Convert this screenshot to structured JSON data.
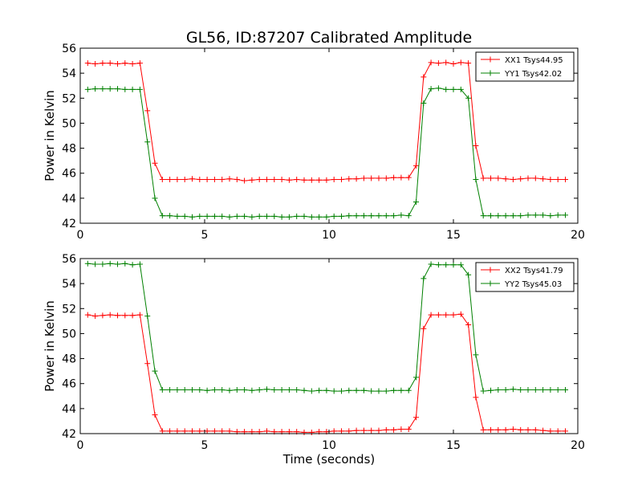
{
  "figure_title": "GL56, ID:87207 Calibrated Amplitude",
  "chart_data": [
    {
      "type": "line",
      "title": "GL56, ID:87207 Calibrated Amplitude",
      "xlabel": "",
      "ylabel": "Power in Kelvin",
      "xlim": [
        0,
        20
      ],
      "ylim": [
        42,
        56
      ],
      "xticks": [
        0,
        5,
        10,
        15,
        20
      ],
      "yticks": [
        42,
        44,
        46,
        48,
        50,
        52,
        54,
        56
      ],
      "grid": false,
      "legend_position": "top-right",
      "x": [
        0.3,
        0.6,
        0.9,
        1.2,
        1.5,
        1.8,
        2.1,
        2.4,
        2.7,
        3.0,
        3.3,
        3.6,
        3.9,
        4.2,
        4.5,
        4.8,
        5.1,
        5.4,
        5.7,
        6.0,
        6.3,
        6.6,
        6.9,
        7.2,
        7.5,
        7.8,
        8.1,
        8.4,
        8.7,
        9.0,
        9.3,
        9.6,
        9.9,
        10.2,
        10.5,
        10.8,
        11.1,
        11.4,
        11.7,
        12.0,
        12.3,
        12.6,
        12.9,
        13.2,
        13.5,
        13.8,
        14.1,
        14.4,
        14.7,
        15.0,
        15.3,
        15.6,
        15.9,
        16.2,
        16.5,
        16.8,
        17.1,
        17.4,
        17.7,
        18.0,
        18.3,
        18.6,
        18.9,
        19.2,
        19.5
      ],
      "series": [
        {
          "name": "XX1 Tsys44.95",
          "color": "#ff0000",
          "values": [
            54.8,
            54.75,
            54.8,
            54.8,
            54.75,
            54.8,
            54.75,
            54.8,
            51.0,
            46.8,
            45.5,
            45.5,
            45.5,
            45.5,
            45.55,
            45.5,
            45.5,
            45.5,
            45.5,
            45.55,
            45.5,
            45.4,
            45.45,
            45.5,
            45.5,
            45.5,
            45.5,
            45.45,
            45.5,
            45.45,
            45.45,
            45.45,
            45.45,
            45.5,
            45.5,
            45.55,
            45.55,
            45.6,
            45.6,
            45.6,
            45.6,
            45.65,
            45.65,
            45.65,
            46.6,
            53.7,
            54.85,
            54.8,
            54.85,
            54.75,
            54.85,
            54.8,
            48.2,
            45.6,
            45.6,
            45.6,
            45.55,
            45.5,
            45.55,
            45.6,
            45.6,
            45.55,
            45.5,
            45.5,
            45.5
          ]
        },
        {
          "name": "YY1 Tsys42.02",
          "color": "#008000",
          "values": [
            52.7,
            52.75,
            52.75,
            52.75,
            52.75,
            52.7,
            52.7,
            52.7,
            48.5,
            44.0,
            42.6,
            42.6,
            42.55,
            42.55,
            42.5,
            42.55,
            42.55,
            42.55,
            42.55,
            42.5,
            42.55,
            42.55,
            42.5,
            42.55,
            42.55,
            42.55,
            42.5,
            42.5,
            42.55,
            42.55,
            42.5,
            42.5,
            42.5,
            42.55,
            42.55,
            42.6,
            42.6,
            42.6,
            42.6,
            42.6,
            42.6,
            42.6,
            42.65,
            42.6,
            43.7,
            51.6,
            52.75,
            52.8,
            52.7,
            52.7,
            52.7,
            52.0,
            45.5,
            42.6,
            42.6,
            42.6,
            42.6,
            42.6,
            42.6,
            42.65,
            42.65,
            42.65,
            42.6,
            42.65,
            42.65
          ]
        }
      ]
    },
    {
      "type": "line",
      "title": "",
      "xlabel": "Time (seconds)",
      "ylabel": "Power in Kelvin",
      "xlim": [
        0,
        20
      ],
      "ylim": [
        42,
        56
      ],
      "xticks": [
        0,
        5,
        10,
        15,
        20
      ],
      "yticks": [
        42,
        44,
        46,
        48,
        50,
        52,
        54,
        56
      ],
      "grid": false,
      "legend_position": "top-right",
      "x": [
        0.3,
        0.6,
        0.9,
        1.2,
        1.5,
        1.8,
        2.1,
        2.4,
        2.7,
        3.0,
        3.3,
        3.6,
        3.9,
        4.2,
        4.5,
        4.8,
        5.1,
        5.4,
        5.7,
        6.0,
        6.3,
        6.6,
        6.9,
        7.2,
        7.5,
        7.8,
        8.1,
        8.4,
        8.7,
        9.0,
        9.3,
        9.6,
        9.9,
        10.2,
        10.5,
        10.8,
        11.1,
        11.4,
        11.7,
        12.0,
        12.3,
        12.6,
        12.9,
        13.2,
        13.5,
        13.8,
        14.1,
        14.4,
        14.7,
        15.0,
        15.3,
        15.6,
        15.9,
        16.2,
        16.5,
        16.8,
        17.1,
        17.4,
        17.7,
        18.0,
        18.3,
        18.6,
        18.9,
        19.2,
        19.5
      ],
      "series": [
        {
          "name": "XX2 Tsys41.79",
          "color": "#ff0000",
          "values": [
            51.5,
            51.4,
            51.45,
            51.5,
            51.45,
            51.45,
            51.45,
            51.5,
            47.6,
            43.5,
            42.2,
            42.2,
            42.2,
            42.2,
            42.2,
            42.2,
            42.2,
            42.2,
            42.2,
            42.2,
            42.15,
            42.15,
            42.15,
            42.15,
            42.2,
            42.15,
            42.15,
            42.15,
            42.15,
            42.1,
            42.1,
            42.15,
            42.15,
            42.2,
            42.2,
            42.2,
            42.25,
            42.25,
            42.25,
            42.25,
            42.3,
            42.3,
            42.35,
            42.35,
            43.3,
            50.4,
            51.5,
            51.5,
            51.5,
            51.5,
            51.55,
            50.7,
            44.9,
            42.3,
            42.3,
            42.3,
            42.3,
            42.35,
            42.3,
            42.3,
            42.3,
            42.25,
            42.2,
            42.2,
            42.2
          ]
        },
        {
          "name": "YY2 Tsys45.03",
          "color": "#008000",
          "values": [
            55.6,
            55.55,
            55.55,
            55.6,
            55.55,
            55.6,
            55.5,
            55.55,
            51.4,
            47.0,
            45.5,
            45.5,
            45.5,
            45.5,
            45.5,
            45.5,
            45.45,
            45.5,
            45.5,
            45.45,
            45.5,
            45.5,
            45.45,
            45.5,
            45.55,
            45.5,
            45.5,
            45.5,
            45.5,
            45.45,
            45.4,
            45.45,
            45.45,
            45.4,
            45.4,
            45.45,
            45.45,
            45.45,
            45.4,
            45.4,
            45.4,
            45.45,
            45.45,
            45.45,
            46.5,
            54.4,
            55.55,
            55.5,
            55.5,
            55.5,
            55.5,
            54.7,
            48.3,
            45.4,
            45.45,
            45.5,
            45.5,
            45.55,
            45.5,
            45.5,
            45.5,
            45.5,
            45.5,
            45.5,
            45.5
          ]
        }
      ]
    }
  ]
}
